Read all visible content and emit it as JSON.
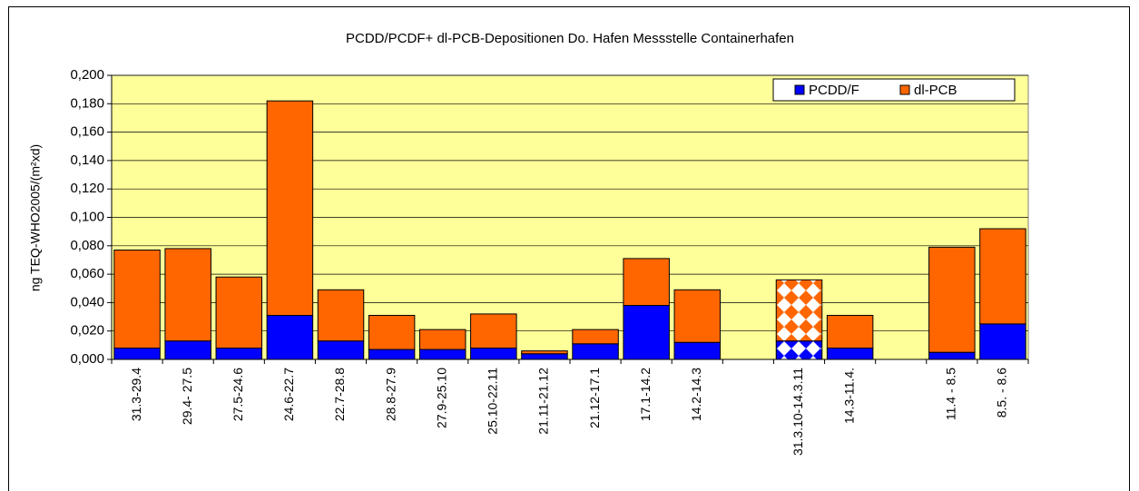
{
  "chart_data": {
    "type": "stacked_bar",
    "title": "PCDD/PCDF+ dl-PCB-Depositionen Do. Hafen Messstelle Containerhafen",
    "y_label": "ng TEQ-WHO2005/(m²xd)",
    "categories": [
      "31.3-29.4",
      "29.4- 27.5",
      "27.5-24.6",
      "24.6-22.7",
      "22.7-28.8",
      "28.8-27.9",
      "27.9-25.10",
      "25.10-22.11",
      "21.11-21.12",
      "21.12-17.1",
      "17.1-14.2",
      "14.2-14.3",
      null,
      "31.3.10-14.3.11",
      "14.3-11.4.",
      null,
      "11.4 - 8.5",
      "8.5. - 8.6"
    ],
    "series": [
      {
        "name": "PCDD/F",
        "color": "#0000ff",
        "values": [
          0.008,
          0.013,
          0.008,
          0.031,
          0.013,
          0.007,
          0.007,
          0.008,
          0.004,
          0.011,
          0.038,
          0.012,
          null,
          0.013,
          0.008,
          null,
          0.005,
          0.025
        ]
      },
      {
        "name": "dl-PCB",
        "color": "#ff6600",
        "values": [
          0.069,
          0.065,
          0.05,
          0.151,
          0.036,
          0.024,
          0.014,
          0.024,
          0.002,
          0.01,
          0.033,
          0.037,
          null,
          0.043,
          0.023,
          null,
          0.074,
          0.067
        ]
      }
    ],
    "patterned_categories": [
      13
    ],
    "ylim": [
      0,
      0.2
    ],
    "yticks": [
      {
        "value": 0,
        "label": "0,000"
      },
      {
        "value": 0.02,
        "label": "0,020"
      },
      {
        "value": 0.04,
        "label": "0,040"
      },
      {
        "value": 0.06,
        "label": "0,060"
      },
      {
        "value": 0.08,
        "label": "0,080"
      },
      {
        "value": 0.1,
        "label": "0,100"
      },
      {
        "value": 0.12,
        "label": "0,120"
      },
      {
        "value": 0.14,
        "label": "0,140"
      },
      {
        "value": 0.16,
        "label": "0,160"
      },
      {
        "value": 0.18,
        "label": "0,180"
      },
      {
        "value": 0.2,
        "label": "0,200"
      }
    ],
    "grid": true,
    "legend": "top-right",
    "plot_background": "#ffff99"
  }
}
